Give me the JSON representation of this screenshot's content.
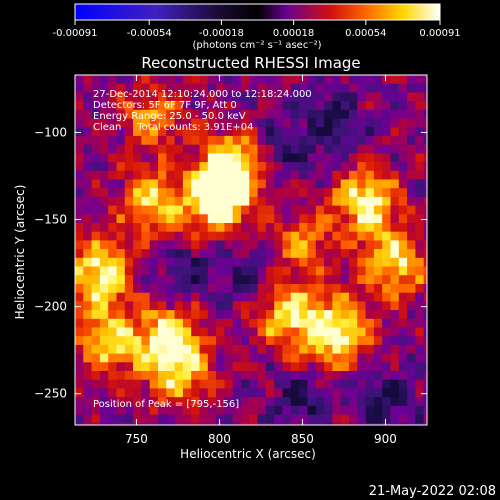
{
  "chart_data": {
    "type": "heatmap",
    "title": "Reconstructed RHESSI Image",
    "xlabel": "Heliocentric X (arcsec)",
    "ylabel": "Heliocentric Y (arcsec)",
    "xlim": [
      713,
      925
    ],
    "ylim": [
      -268,
      -67
    ],
    "x_ticks": [
      750,
      800,
      850,
      900
    ],
    "y_ticks": [
      -100,
      -150,
      -200,
      -250
    ],
    "grid": false,
    "colorbar": {
      "position": "top",
      "range": [
        -0.00091,
        0.00091
      ],
      "tick_values": [
        -0.00091,
        -0.00054,
        -0.00018,
        0.00018,
        0.00054,
        0.00091
      ],
      "tick_labels": [
        "-0.00091",
        "-0.00054",
        "-0.00018",
        "0.00018",
        "0.00054",
        "0.00091"
      ],
      "unit_label": "(photons cm⁻² s⁻¹ asec⁻²)",
      "colors": [
        "#0000ff",
        "#4020c0",
        "#1a0a30",
        "#000000",
        "#6a0090",
        "#d01010",
        "#ff6a00",
        "#ffd800",
        "#ffffff"
      ]
    },
    "annotations": [
      "27-Dec-2014 12:10:24.000 to 12:18:24.000",
      "Detectors: 5F 6F 7F 9F, Att 0",
      "Energy Range: 25.0 - 50.0 keV",
      "Clean     Total counts: 3.91E+04"
    ],
    "peak_annotation": "Position of Peak = [795,-156]",
    "peak_position": [
      795,
      -156
    ],
    "bright_regions": [
      {
        "x": 800,
        "y": -140,
        "level": 0.95
      },
      {
        "x": 808,
        "y": -118,
        "level": 0.85
      },
      {
        "x": 760,
        "y": -140,
        "level": 0.7
      },
      {
        "x": 727,
        "y": -180,
        "level": 0.9
      },
      {
        "x": 733,
        "y": -220,
        "level": 0.75
      },
      {
        "x": 770,
        "y": -218,
        "level": 0.8
      },
      {
        "x": 775,
        "y": -240,
        "level": 0.6
      },
      {
        "x": 840,
        "y": -205,
        "level": 0.75
      },
      {
        "x": 870,
        "y": -215,
        "level": 0.9
      },
      {
        "x": 888,
        "y": -140,
        "level": 0.85
      },
      {
        "x": 905,
        "y": -175,
        "level": 0.8
      },
      {
        "x": 850,
        "y": -165,
        "level": 0.5
      },
      {
        "x": 760,
        "y": -92,
        "level": 0.55
      }
    ],
    "dark_regions": [
      {
        "x": 840,
        "y": -110
      },
      {
        "x": 870,
        "y": -95
      },
      {
        "x": 900,
        "y": -255
      },
      {
        "x": 850,
        "y": -255
      },
      {
        "x": 780,
        "y": -180
      },
      {
        "x": 820,
        "y": -180
      }
    ]
  },
  "timestamp": "21-May-2022 02:08"
}
